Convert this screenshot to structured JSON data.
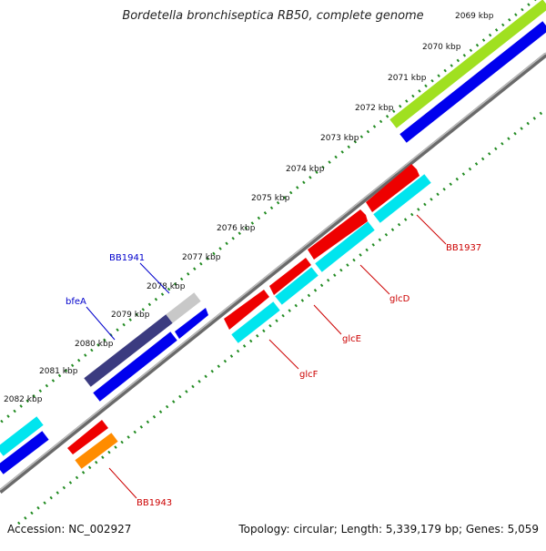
{
  "title": "Bordetella bronchiseptica RB50, complete genome",
  "footer": {
    "accession": "Accession: NC_002927",
    "summary": "Topology: circular; Length: 5,339,179 bp; Genes: 5,059"
  },
  "ticks": [
    "2069 kbp",
    "2070 kbp",
    "2071 kbp",
    "2072 kbp",
    "2073 kbp",
    "2074 kbp",
    "2075 kbp",
    "2076 kbp",
    "2077 kbp",
    "2078 kbp",
    "2079 kbp",
    "2080 kbp",
    "2081 kbp",
    "2082 kbp"
  ],
  "gene_labels": {
    "bb1941": "BB1941",
    "bfea": "bfeA",
    "bb1937": "BB1937",
    "glcd": "glcD",
    "glce": "glcE",
    "glcf": "glcF",
    "bb1943": "BB1943"
  },
  "colors": {
    "backbone": "#808080",
    "tick": "#228b22",
    "cds_blue": "#0000ee",
    "cds_red": "#ee0000",
    "cds_cyan": "#00e5ee",
    "cds_orange": "#ff8c00",
    "gene_navy": "#3b3b80",
    "gene_grey": "#c8c8c8",
    "gene_lime": "#a0e020",
    "label_blue": "#0000cc",
    "label_red": "#cc0000"
  }
}
